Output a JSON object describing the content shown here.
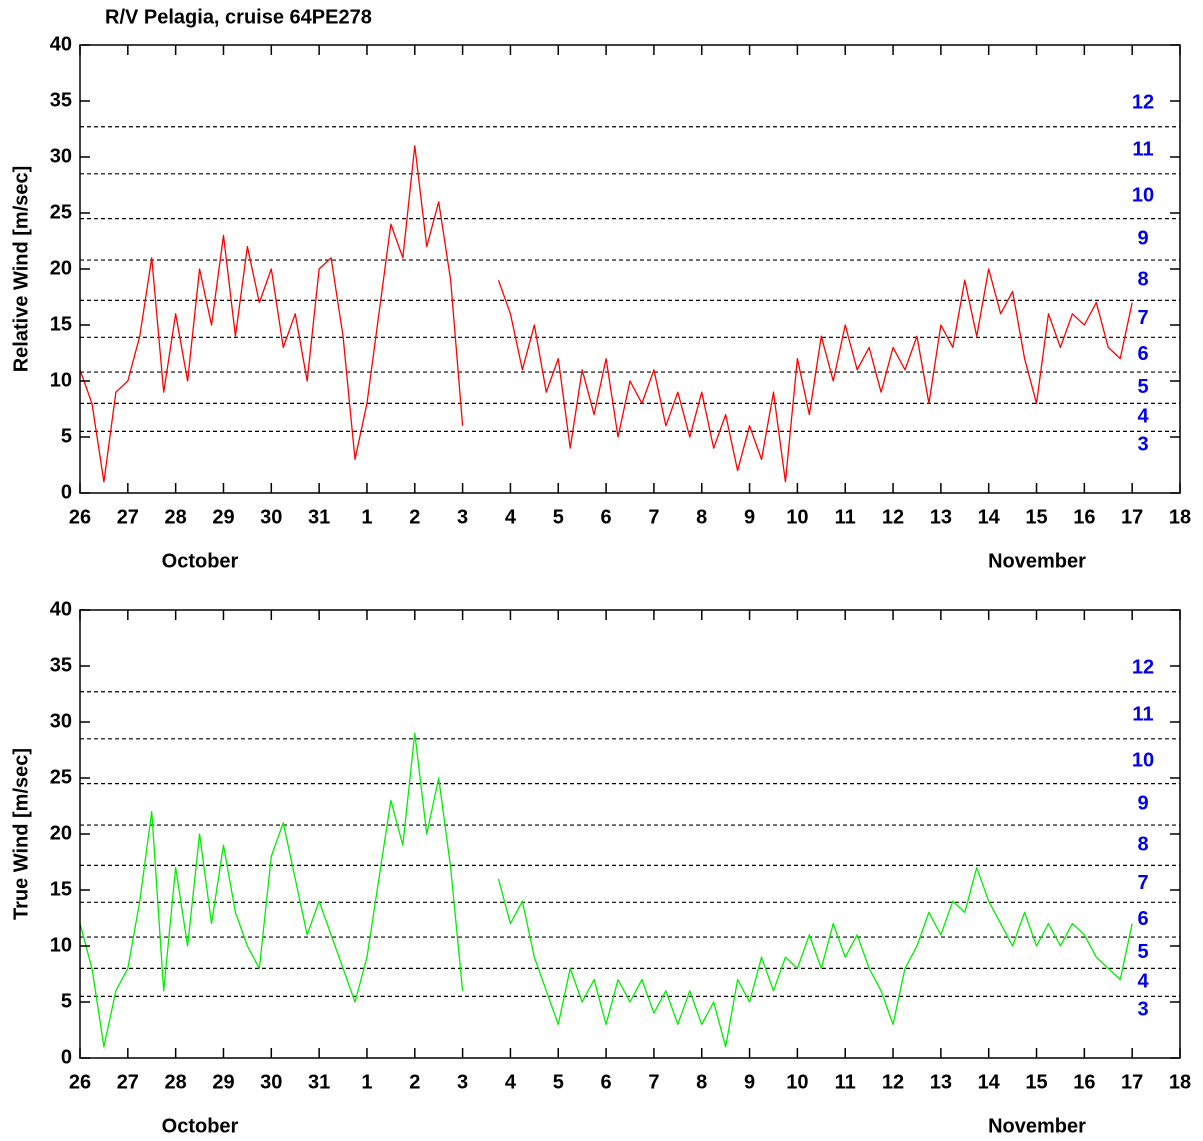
{
  "chart_data": [
    {
      "type": "line",
      "title": "R/V Pelagia, cruise 64PE278",
      "ylabel": "Relative Wind [m/sec]",
      "color": "#ff0000",
      "x": [
        0,
        0.25,
        0.5,
        0.75,
        1,
        1.25,
        1.5,
        1.75,
        2,
        2.25,
        2.5,
        2.75,
        3,
        3.25,
        3.5,
        3.75,
        4,
        4.25,
        4.5,
        4.75,
        5,
        5.25,
        5.5,
        5.75,
        6,
        6.25,
        6.5,
        6.75,
        7,
        7.25,
        7.5,
        7.75,
        8,
        8.25,
        8.5,
        8.75,
        9,
        9.25,
        9.5,
        9.75,
        10,
        10.25,
        10.5,
        10.75,
        11,
        11.25,
        11.5,
        11.75,
        12,
        12.25,
        12.5,
        12.75,
        13,
        13.25,
        13.5,
        13.75,
        14,
        14.25,
        14.5,
        14.75,
        15,
        15.25,
        15.5,
        15.75,
        16,
        16.25,
        16.5,
        16.75,
        17,
        17.25,
        17.5,
        17.75,
        18,
        18.25,
        18.5,
        18.75,
        19,
        19.25,
        19.5,
        19.75,
        20,
        20.25,
        20.5,
        20.75,
        21,
        21.25,
        21.5,
        21.75,
        22
      ],
      "values": [
        11,
        8,
        1,
        9,
        10,
        14,
        21,
        9,
        16,
        10,
        20,
        15,
        23,
        14,
        22,
        17,
        20,
        13,
        16,
        10,
        20,
        21,
        14,
        3,
        8,
        16,
        24,
        21,
        31,
        22,
        26,
        19,
        6,
        null,
        null,
        19,
        16,
        11,
        15,
        9,
        12,
        4,
        11,
        7,
        12,
        5,
        10,
        8,
        11,
        6,
        9,
        5,
        9,
        4,
        7,
        2,
        6,
        3,
        9,
        1,
        12,
        7,
        14,
        10,
        15,
        11,
        13,
        9,
        13,
        11,
        14,
        8,
        15,
        13,
        19,
        14,
        20,
        16,
        18,
        12,
        8,
        16,
        13,
        16,
        15,
        17,
        13,
        12,
        17
      ],
      "xlim": [
        0,
        23
      ],
      "ylim": [
        0,
        40
      ],
      "xticks": [
        {
          "value": 0,
          "label": "26"
        },
        {
          "value": 1,
          "label": "27"
        },
        {
          "value": 2,
          "label": "28"
        },
        {
          "value": 3,
          "label": "29"
        },
        {
          "value": 4,
          "label": "30"
        },
        {
          "value": 5,
          "label": "31"
        },
        {
          "value": 6,
          "label": "1"
        },
        {
          "value": 7,
          "label": "2"
        },
        {
          "value": 8,
          "label": "3"
        },
        {
          "value": 9,
          "label": "4"
        },
        {
          "value": 10,
          "label": "5"
        },
        {
          "value": 11,
          "label": "6"
        },
        {
          "value": 12,
          "label": "7"
        },
        {
          "value": 13,
          "label": "8"
        },
        {
          "value": 14,
          "label": "9"
        },
        {
          "value": 15,
          "label": "10"
        },
        {
          "value": 16,
          "label": "11"
        },
        {
          "value": 17,
          "label": "12"
        },
        {
          "value": 18,
          "label": "13"
        },
        {
          "value": 19,
          "label": "14"
        },
        {
          "value": 20,
          "label": "15"
        },
        {
          "value": 21,
          "label": "16"
        },
        {
          "value": 22,
          "label": "17"
        },
        {
          "value": 23,
          "label": "18"
        }
      ],
      "yticks": [
        0,
        5,
        10,
        15,
        20,
        25,
        30,
        35,
        40
      ],
      "hlines": [
        5.5,
        8.0,
        10.8,
        13.9,
        17.2,
        20.8,
        24.5,
        28.5,
        32.7
      ],
      "hline_labels": [
        3,
        4,
        5,
        6,
        7,
        8,
        9,
        10,
        11,
        12
      ],
      "month_labels": [
        "October",
        "November"
      ]
    },
    {
      "type": "line",
      "ylabel": "True Wind [m/sec]",
      "color": "#00ee00",
      "x": [
        0,
        0.25,
        0.5,
        0.75,
        1,
        1.25,
        1.5,
        1.75,
        2,
        2.25,
        2.5,
        2.75,
        3,
        3.25,
        3.5,
        3.75,
        4,
        4.25,
        4.5,
        4.75,
        5,
        5.25,
        5.5,
        5.75,
        6,
        6.25,
        6.5,
        6.75,
        7,
        7.25,
        7.5,
        7.75,
        8,
        8.25,
        8.5,
        8.75,
        9,
        9.25,
        9.5,
        9.75,
        10,
        10.25,
        10.5,
        10.75,
        11,
        11.25,
        11.5,
        11.75,
        12,
        12.25,
        12.5,
        12.75,
        13,
        13.25,
        13.5,
        13.75,
        14,
        14.25,
        14.5,
        14.75,
        15,
        15.25,
        15.5,
        15.75,
        16,
        16.25,
        16.5,
        16.75,
        17,
        17.25,
        17.5,
        17.75,
        18,
        18.25,
        18.5,
        18.75,
        19,
        19.25,
        19.5,
        19.75,
        20,
        20.25,
        20.5,
        20.75,
        21,
        21.25,
        21.5,
        21.75,
        22
      ],
      "values": [
        12,
        8,
        1,
        6,
        8,
        14,
        22,
        6,
        17,
        10,
        20,
        12,
        19,
        13,
        10,
        8,
        18,
        21,
        16,
        11,
        14,
        11,
        8,
        5,
        9,
        16,
        23,
        19,
        29,
        20,
        25,
        17,
        6,
        null,
        null,
        16,
        12,
        14,
        9,
        6,
        3,
        8,
        5,
        7,
        3,
        7,
        5,
        7,
        4,
        6,
        3,
        6,
        3,
        5,
        1,
        7,
        5,
        9,
        6,
        9,
        8,
        11,
        8,
        12,
        9,
        11,
        8,
        6,
        3,
        8,
        10,
        13,
        11,
        14,
        13,
        17,
        14,
        12,
        10,
        13,
        10,
        12,
        10,
        12,
        11,
        9,
        8,
        7,
        12
      ],
      "xlim": [
        0,
        23
      ],
      "ylim": [
        0,
        40
      ],
      "xticks": [
        {
          "value": 0,
          "label": "26"
        },
        {
          "value": 1,
          "label": "27"
        },
        {
          "value": 2,
          "label": "28"
        },
        {
          "value": 3,
          "label": "29"
        },
        {
          "value": 4,
          "label": "30"
        },
        {
          "value": 5,
          "label": "31"
        },
        {
          "value": 6,
          "label": "1"
        },
        {
          "value": 7,
          "label": "2"
        },
        {
          "value": 8,
          "label": "3"
        },
        {
          "value": 9,
          "label": "4"
        },
        {
          "value": 10,
          "label": "5"
        },
        {
          "value": 11,
          "label": "6"
        },
        {
          "value": 12,
          "label": "7"
        },
        {
          "value": 13,
          "label": "8"
        },
        {
          "value": 14,
          "label": "9"
        },
        {
          "value": 15,
          "label": "10"
        },
        {
          "value": 16,
          "label": "11"
        },
        {
          "value": 17,
          "label": "12"
        },
        {
          "value": 18,
          "label": "13"
        },
        {
          "value": 19,
          "label": "14"
        },
        {
          "value": 20,
          "label": "15"
        },
        {
          "value": 21,
          "label": "16"
        },
        {
          "value": 22,
          "label": "17"
        },
        {
          "value": 23,
          "label": "18"
        }
      ],
      "yticks": [
        0,
        5,
        10,
        15,
        20,
        25,
        30,
        35,
        40
      ],
      "hlines": [
        5.5,
        8.0,
        10.8,
        13.9,
        17.2,
        20.8,
        24.5,
        28.5,
        32.7
      ],
      "hline_labels": [
        3,
        4,
        5,
        6,
        7,
        8,
        9,
        10,
        11,
        12
      ],
      "month_labels": [
        "October",
        "November"
      ]
    }
  ]
}
